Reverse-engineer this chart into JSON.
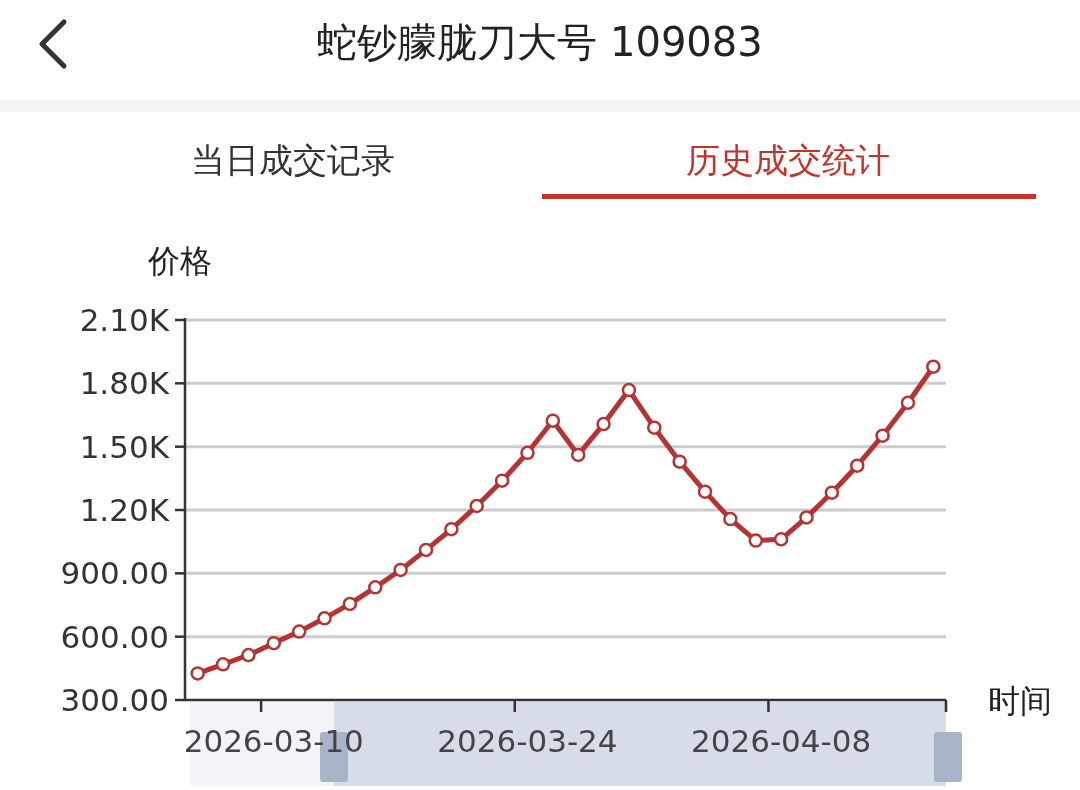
{
  "chart_data": {
    "type": "line",
    "title": "蛇钞朦胧刀大号 109083",
    "annotations": [
      "当日成交记录",
      "历史成交统计"
    ],
    "ylabel": "价格",
    "xlabel": "时间",
    "categories": [
      null,
      null,
      null,
      "2026-03-10",
      null,
      null,
      null,
      null,
      null,
      null,
      null,
      null,
      null,
      "2026-03-24",
      null,
      null,
      null,
      null,
      null,
      null,
      null,
      null,
      null,
      "2026-04-08",
      null,
      null,
      null,
      null,
      null,
      null
    ],
    "series": [
      {
        "color": "#b83232",
        "values": [
          426,
          469,
          513,
          569,
          624,
          687,
          755,
          834,
          916,
          1011,
          1109,
          1219,
          1339,
          1471,
          1623,
          1461,
          1607,
          1768,
          1590,
          1429,
          1287,
          1157,
          1055,
          1061,
          1165,
          1282,
          1410,
          1552,
          1708,
          1879
        ]
      }
    ],
    "ylim": [
      300,
      2100
    ],
    "yticks": [
      {
        "value": 300,
        "label": "300.00"
      },
      {
        "value": 600,
        "label": "600.00"
      },
      {
        "value": 900,
        "label": "900.00"
      },
      {
        "value": 1200,
        "label": "1.20K"
      },
      {
        "value": 1500,
        "label": "1.50K"
      },
      {
        "value": 1800,
        "label": "1.80K"
      },
      {
        "value": 2100,
        "label": "2.10K"
      }
    ],
    "grid": "y",
    "marker": "circle",
    "line_style": "solid"
  }
}
